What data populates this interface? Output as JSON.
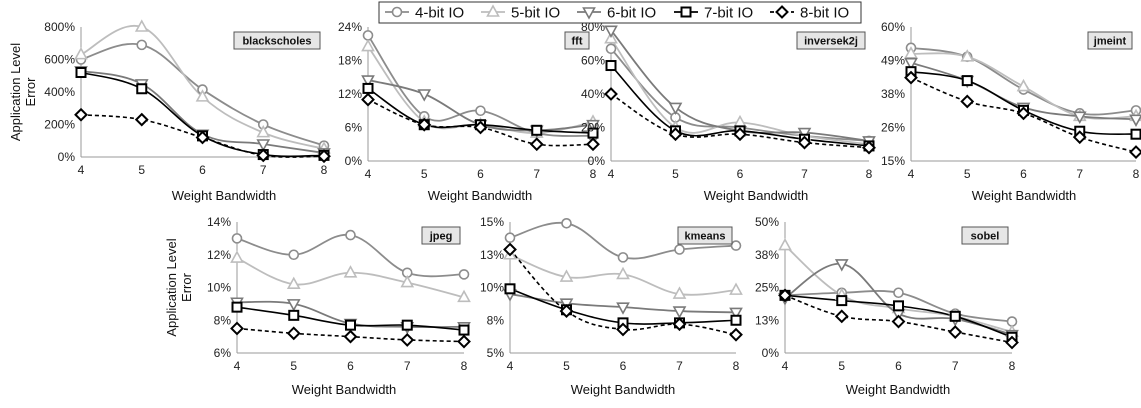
{
  "legend": {
    "items": [
      {
        "label": "4-bit IO",
        "marker": "circle",
        "color": "#8c8c8c",
        "dash": false
      },
      {
        "label": "5-bit IO",
        "marker": "triangle-up",
        "color": "#bdbdbd",
        "dash": false
      },
      {
        "label": "6-bit IO",
        "marker": "triangle-down",
        "color": "#7a7a7a",
        "dash": false
      },
      {
        "label": "7-bit IO",
        "marker": "square",
        "color": "#000000",
        "dash": false
      },
      {
        "label": "8-bit IO",
        "marker": "diamond",
        "color": "#000000",
        "dash": true
      }
    ]
  },
  "chart_data": [
    {
      "type": "line",
      "title": "blackscholes",
      "x": [
        4,
        5,
        6,
        7,
        8
      ],
      "xlabel": "Weight Bandwidth",
      "ylabel": "Application Level Error",
      "yticks": [
        "0%",
        "200%",
        "400%",
        "600%",
        "800%"
      ],
      "ylim": [
        0,
        800
      ],
      "series": [
        {
          "name": "4-bit IO",
          "values": [
            600,
            690,
            415,
            200,
            70
          ]
        },
        {
          "name": "5-bit IO",
          "values": [
            630,
            800,
            370,
            150,
            50
          ]
        },
        {
          "name": "6-bit IO",
          "values": [
            530,
            450,
            140,
            80,
            25
          ]
        },
        {
          "name": "7-bit IO",
          "values": [
            520,
            420,
            130,
            15,
            10
          ]
        },
        {
          "name": "8-bit IO",
          "values": [
            260,
            230,
            120,
            10,
            5
          ]
        }
      ]
    },
    {
      "type": "line",
      "title": "fft",
      "x": [
        4,
        5,
        6,
        7,
        8
      ],
      "xlabel": "Weight Bandwidth",
      "ylabel": "",
      "yticks": [
        "0%",
        "6%",
        "12%",
        "18%",
        "24%"
      ],
      "ylim": [
        0,
        24
      ],
      "series": [
        {
          "name": "4-bit IO",
          "values": [
            22.5,
            8,
            9,
            5,
            4.5
          ]
        },
        {
          "name": "5-bit IO",
          "values": [
            20.5,
            7,
            6.5,
            5,
            7
          ]
        },
        {
          "name": "6-bit IO",
          "values": [
            14.5,
            12,
            6.5,
            5.5,
            6.5
          ]
        },
        {
          "name": "7-bit IO",
          "values": [
            13,
            6.5,
            6.5,
            5.5,
            5
          ]
        },
        {
          "name": "8-bit IO",
          "values": [
            11,
            6.5,
            6,
            3,
            3
          ]
        }
      ]
    },
    {
      "type": "line",
      "title": "inversek2j",
      "x": [
        4,
        5,
        6,
        7,
        8
      ],
      "xlabel": "Weight Bandwidth",
      "ylabel": "",
      "yticks": [
        "0%",
        "20%",
        "40%",
        "60%",
        "80%"
      ],
      "ylim": [
        0,
        80
      ],
      "series": [
        {
          "name": "4-bit IO",
          "values": [
            67,
            26,
            20,
            15,
            12
          ]
        },
        {
          "name": "5-bit IO",
          "values": [
            73,
            20,
            23,
            15,
            10
          ]
        },
        {
          "name": "6-bit IO",
          "values": [
            78,
            32,
            18,
            17,
            12
          ]
        },
        {
          "name": "7-bit IO",
          "values": [
            57,
            18,
            18,
            13,
            9
          ]
        },
        {
          "name": "8-bit IO",
          "values": [
            40,
            16,
            16,
            11,
            8
          ]
        }
      ]
    },
    {
      "type": "line",
      "title": "jmeint",
      "x": [
        4,
        5,
        6,
        7,
        8
      ],
      "xlabel": "Weight Bandwidth",
      "ylabel": "",
      "yticks": [
        "15%",
        "26%",
        "38%",
        "49%",
        "60%"
      ],
      "ylim": [
        15,
        60
      ],
      "series": [
        {
          "name": "4-bit IO",
          "values": [
            53,
            50,
            39,
            31,
            32
          ]
        },
        {
          "name": "5-bit IO",
          "values": [
            51,
            50,
            40,
            30,
            30
          ]
        },
        {
          "name": "6-bit IO",
          "values": [
            48,
            42,
            33,
            30,
            29
          ]
        },
        {
          "name": "7-bit IO",
          "values": [
            45,
            42,
            32,
            25,
            24
          ]
        },
        {
          "name": "8-bit IO",
          "values": [
            43,
            35,
            31,
            23,
            18
          ]
        }
      ]
    },
    {
      "type": "line",
      "title": "jpeg",
      "x": [
        4,
        5,
        6,
        7,
        8
      ],
      "xlabel": "Weight Bandwidth",
      "ylabel": "Application Level Error",
      "yticks": [
        "6%",
        "8%",
        "10%",
        "12%",
        "14%"
      ],
      "ylim": [
        6,
        14
      ],
      "series": [
        {
          "name": "4-bit IO",
          "values": [
            13,
            12,
            13.2,
            10.9,
            10.8
          ]
        },
        {
          "name": "5-bit IO",
          "values": [
            11.8,
            10.2,
            10.9,
            10.3,
            9.4
          ]
        },
        {
          "name": "6-bit IO",
          "values": [
            9.1,
            9,
            7.8,
            7.6,
            7.6
          ]
        },
        {
          "name": "7-bit IO",
          "values": [
            8.8,
            8.3,
            7.7,
            7.7,
            7.4
          ]
        },
        {
          "name": "8-bit IO",
          "values": [
            7.5,
            7.2,
            7,
            6.8,
            6.7
          ]
        }
      ]
    },
    {
      "type": "line",
      "title": "kmeans",
      "x": [
        4,
        5,
        6,
        7,
        8
      ],
      "xlabel": "Weight Bandwidth",
      "ylabel": "",
      "yticks": [
        "5%",
        "8%",
        "10%",
        "13%",
        "15%"
      ],
      "ylim": [
        5,
        15
      ],
      "series": [
        {
          "name": "4-bit IO",
          "values": [
            13.8,
            14.9,
            12.3,
            12.9,
            13.2
          ]
        },
        {
          "name": "5-bit IO",
          "values": [
            12.5,
            10.8,
            11,
            9.5,
            9.8
          ]
        },
        {
          "name": "6-bit IO",
          "values": [
            9.5,
            8.8,
            8.5,
            8.2,
            8.1
          ]
        },
        {
          "name": "7-bit IO",
          "values": [
            9.9,
            8.3,
            7.3,
            7.3,
            7.5
          ]
        },
        {
          "name": "8-bit IO",
          "values": [
            12.9,
            8.2,
            6.8,
            7.2,
            6.4
          ]
        }
      ]
    },
    {
      "type": "line",
      "title": "sobel",
      "x": [
        4,
        5,
        6,
        7,
        8
      ],
      "xlabel": "Weight Bandwidth",
      "ylabel": "",
      "yticks": [
        "0%",
        "13%",
        "25%",
        "38%",
        "50%"
      ],
      "ylim": [
        0,
        50
      ],
      "series": [
        {
          "name": "4-bit IO",
          "values": [
            22,
            23,
            23,
            15,
            12
          ]
        },
        {
          "name": "5-bit IO",
          "values": [
            41,
            22,
            17,
            14,
            8
          ]
        },
        {
          "name": "6-bit IO",
          "values": [
            21,
            34,
            15,
            13,
            7
          ]
        },
        {
          "name": "7-bit IO",
          "values": [
            22,
            20,
            18,
            14,
            6
          ]
        },
        {
          "name": "8-bit IO",
          "values": [
            22,
            14,
            12,
            8,
            4
          ]
        }
      ]
    }
  ]
}
